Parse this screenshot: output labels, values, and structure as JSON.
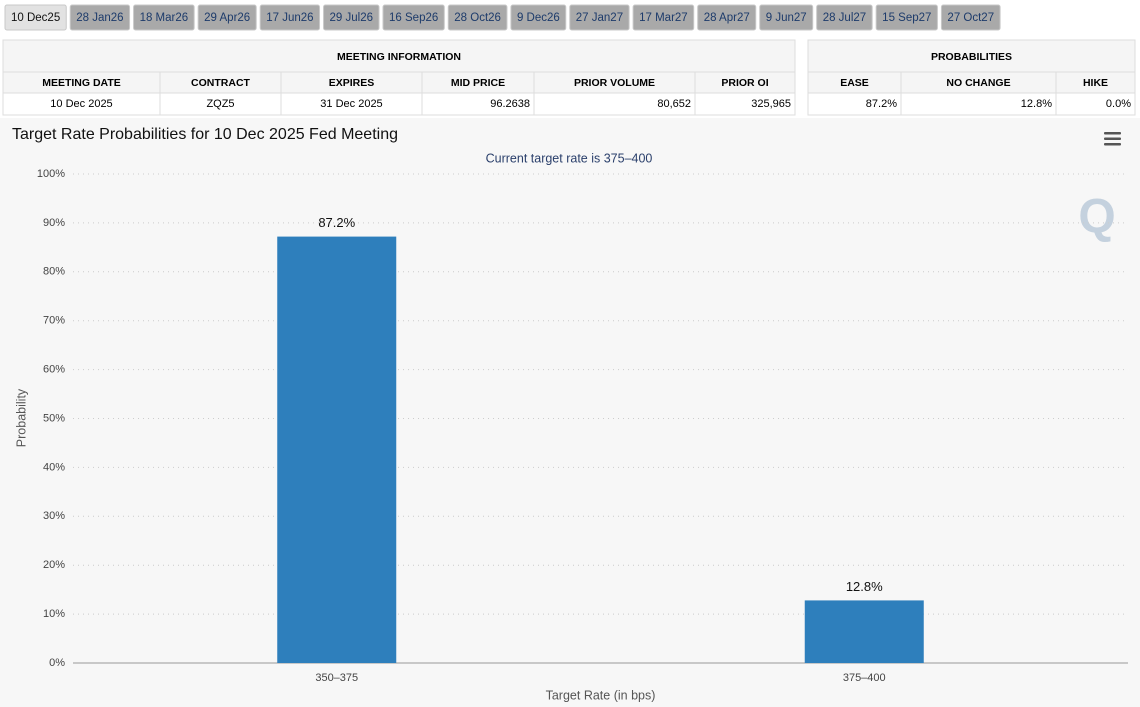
{
  "tabs": [
    "10 Dec25",
    "28 Jan26",
    "18 Mar26",
    "29 Apr26",
    "17 Jun26",
    "29 Jul26",
    "16 Sep26",
    "28 Oct26",
    "9 Dec26",
    "27 Jan27",
    "17 Mar27",
    "28 Apr27",
    "9 Jun27",
    "28 Jul27",
    "15 Sep27",
    "27 Oct27"
  ],
  "meeting_info": {
    "title": "MEETING INFORMATION",
    "headers": [
      "MEETING DATE",
      "CONTRACT",
      "EXPIRES",
      "MID PRICE",
      "PRIOR VOLUME",
      "PRIOR OI"
    ],
    "row": [
      "10 Dec 2025",
      "ZQZ5",
      "31 Dec 2025",
      "96.2638",
      "80,652",
      "325,965"
    ]
  },
  "probabilities": {
    "title": "PROBABILITIES",
    "headers": [
      "EASE",
      "NO CHANGE",
      "HIKE"
    ],
    "row": [
      "87.2%",
      "12.8%",
      "0.0%"
    ]
  },
  "logo": "Q",
  "chart_data": {
    "type": "bar",
    "title": "Target Rate Probabilities for 10 Dec 2025 Fed Meeting",
    "subtitle": "Current target rate is 375–400",
    "x_label": "Target Rate (in bps)",
    "y_label": "Probability",
    "categories": [
      "350–375",
      "375–400"
    ],
    "values": [
      87.2,
      12.8
    ],
    "value_labels": [
      "87.2%",
      "12.8%"
    ],
    "color": "#2e7fbc",
    "ylim": [
      0,
      100
    ],
    "yticks": [
      {
        "value": 0,
        "label": "0%"
      },
      {
        "value": 10,
        "label": "10%"
      },
      {
        "value": 20,
        "label": "20%"
      },
      {
        "value": 30,
        "label": "30%"
      },
      {
        "value": 40,
        "label": "40%"
      },
      {
        "value": 50,
        "label": "50%"
      },
      {
        "value": 60,
        "label": "60%"
      },
      {
        "value": 70,
        "label": "70%"
      },
      {
        "value": 80,
        "label": "80%"
      },
      {
        "value": 90,
        "label": "90%"
      },
      {
        "value": 100,
        "label": "100%"
      }
    ],
    "grid": true
  }
}
